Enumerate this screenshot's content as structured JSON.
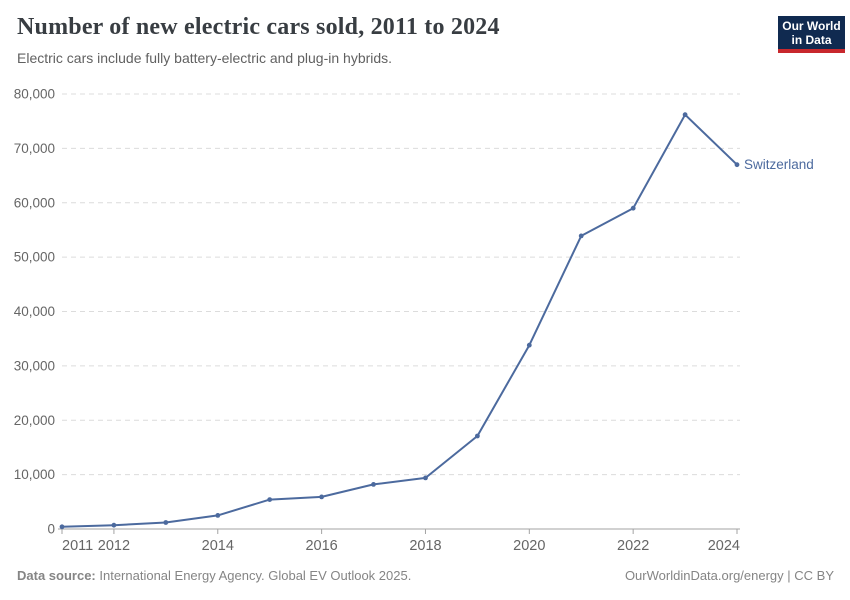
{
  "header": {
    "title": "Number of new electric cars sold, 2011 to 2024",
    "subtitle": "Electric cars include fully battery-electric and plug-in hybrids."
  },
  "logo": {
    "line1": "Our World",
    "line2": "in Data"
  },
  "chart_data": {
    "type": "line",
    "title": "Number of new electric cars sold, 2011 to 2024",
    "xlabel": "",
    "ylabel": "",
    "x": [
      2011,
      2012,
      2013,
      2014,
      2015,
      2016,
      2017,
      2018,
      2019,
      2020,
      2021,
      2022,
      2023,
      2024
    ],
    "series": [
      {
        "name": "Switzerland",
        "values": [
          400,
          700,
          1200,
          2500,
          5400,
          5900,
          8200,
          9400,
          17100,
          33800,
          53900,
          59000,
          76200,
          67000
        ]
      }
    ],
    "ylim": [
      0,
      80000
    ],
    "y_ticks": [
      0,
      10000,
      20000,
      30000,
      40000,
      50000,
      60000,
      70000,
      80000
    ],
    "x_tick_years": [
      2011,
      2012,
      2014,
      2016,
      2018,
      2020,
      2022,
      2024
    ],
    "grid": "horizontal-dashed",
    "legend_position": "end-of-line-label",
    "end_label": "Switzerland"
  },
  "footer": {
    "source_label": "Data source:",
    "source_text": " International Energy Agency. Global EV Outlook 2025.",
    "right_text": "OurWorldinData.org/energy | CC BY"
  },
  "colors": {
    "line": "#4c6a9e",
    "grid": "#dcdcdc",
    "axis": "#a3a3a3",
    "tick_label": "#666666",
    "end_label": "#4c6a9e",
    "logo_bg": "#102a50",
    "logo_bar": "#c8282d"
  }
}
